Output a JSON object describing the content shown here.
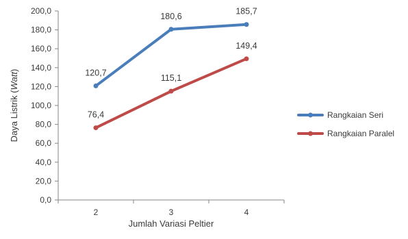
{
  "chart_data": {
    "type": "line",
    "x": [
      2,
      3,
      4
    ],
    "x_tick_labels": [
      "2",
      "3",
      "4"
    ],
    "series": [
      {
        "name": "Rangkaian Seri",
        "color": "#4a7ebb",
        "values": [
          120.7,
          180.6,
          185.7
        ],
        "data_labels": [
          "120,7",
          "180,6",
          "185,7"
        ]
      },
      {
        "name": "Rangkaian Paralel",
        "color": "#be4b48",
        "values": [
          76.4,
          115.1,
          149.4
        ],
        "data_labels": [
          "76,4",
          "115,1",
          "149,4"
        ]
      }
    ],
    "xlabel": "Jumlah Variasi Peltier",
    "ylabel_main": "Daya Listrik (",
    "ylabel_italic": "Watt",
    "ylabel_close": ")",
    "ylim": [
      0,
      200
    ],
    "y_ticks": [
      0,
      20,
      40,
      60,
      80,
      100,
      120,
      140,
      160,
      180,
      200
    ],
    "y_tick_labels": [
      "0,0",
      "20,0",
      "40,0",
      "60,0",
      "80,0",
      "100,0",
      "120,0",
      "140,0",
      "160,0",
      "180,0",
      "200,0"
    ],
    "grid": false,
    "legend_position": "right"
  }
}
